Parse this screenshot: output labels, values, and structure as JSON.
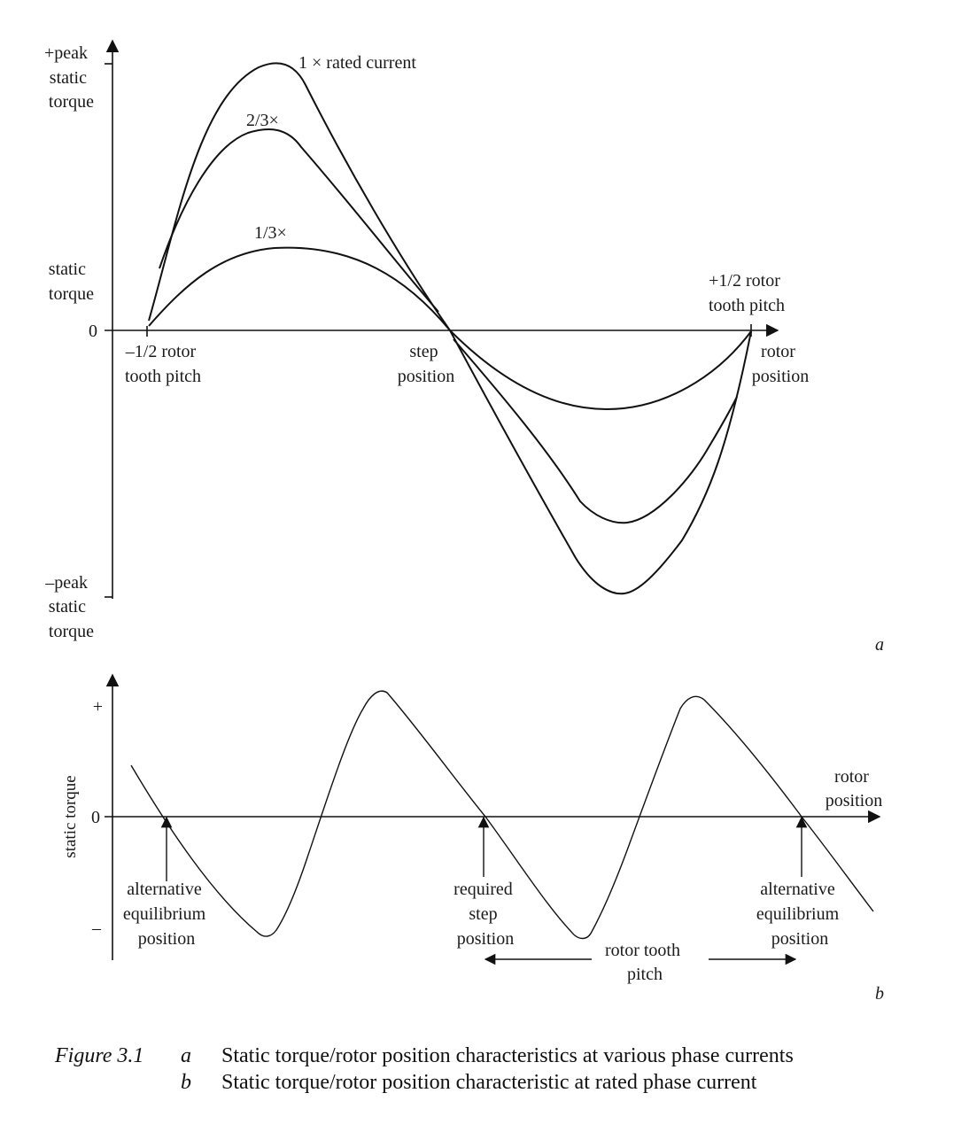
{
  "panel_a": {
    "y_labels": {
      "pos_peak": [
        "+peak",
        "static",
        "torque"
      ],
      "static_torque": [
        "static",
        "torque"
      ],
      "zero": "0",
      "neg_peak": [
        "–peak",
        "static",
        "torque"
      ]
    },
    "x_labels": {
      "left": [
        "–1/2 rotor",
        "tooth pitch"
      ],
      "step": [
        "step",
        "position"
      ],
      "right_pitch": [
        "+1/2 rotor",
        "tooth pitch"
      ],
      "axis": [
        "rotor",
        "position"
      ]
    },
    "curve_labels": {
      "full": "1 × rated current",
      "two_thirds": "2/3×",
      "one_third": "1/3×"
    },
    "panel_letter": "a"
  },
  "panel_b": {
    "y_axis_title": "static torque",
    "y_labels": {
      "plus": "+",
      "zero": "0",
      "minus": "–"
    },
    "x_axis_label": [
      "rotor",
      "position"
    ],
    "annotations": {
      "left": [
        "alternative",
        "equilibrium",
        "position"
      ],
      "middle": [
        "required",
        "step",
        "position"
      ],
      "right": [
        "alternative",
        "equilibrium",
        "position"
      ],
      "pitch": [
        "rotor tooth",
        "pitch"
      ]
    },
    "panel_letter": "b"
  },
  "caption": {
    "figure": "Figure 3.1",
    "a_letter": "a",
    "a_text": "Static torque/rotor position characteristics at various phase currents",
    "b_letter": "b",
    "b_text": "Static torque/rotor position characteristic at rated phase current"
  }
}
